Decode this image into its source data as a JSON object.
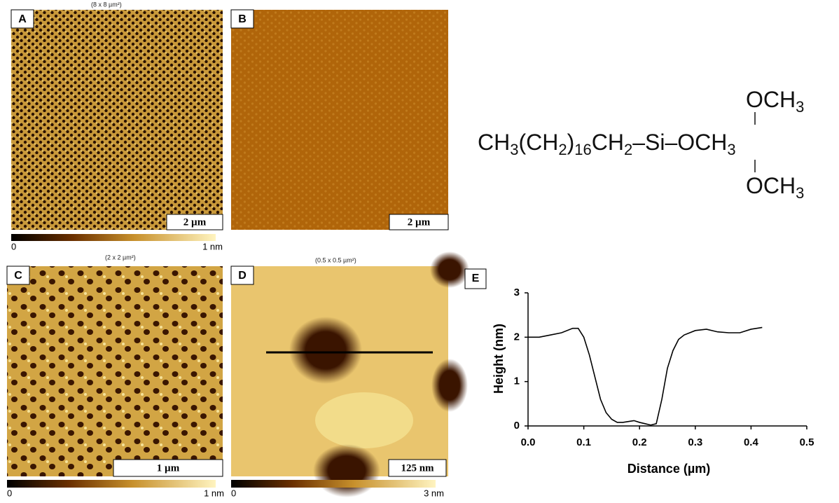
{
  "panels": [
    {
      "label": "A",
      "size": "(8 x 8 µm²)",
      "scale": "2 µm",
      "colorbar": [
        "0",
        "1 nm"
      ]
    },
    {
      "label": "B",
      "scale": "2 µm"
    },
    {
      "label": "C",
      "size": "(2 x 2 µm²)",
      "scale": "1 µm",
      "colorbar": [
        "0",
        "1 nm"
      ]
    },
    {
      "label": "D",
      "size": "(0.5 x 0.5 µm²)",
      "scale": "125 nm",
      "colorbar": [
        "0",
        "3 nm"
      ]
    }
  ],
  "formula": {
    "top": [
      "OCH",
      "3"
    ],
    "main": [
      "CH",
      "3",
      "(CH",
      "2",
      ")",
      "16",
      "CH",
      "2",
      "–Si–OCH",
      "3"
    ],
    "bottom": [
      "OCH",
      "3"
    ]
  },
  "chart_data": {
    "type": "line",
    "label": "E",
    "x_label": "Distance (µm)",
    "y_label": "Height (nm)",
    "x": [
      0,
      0.02,
      0.04,
      0.06,
      0.08,
      0.09,
      0.1,
      0.11,
      0.12,
      0.13,
      0.14,
      0.15,
      0.16,
      0.17,
      0.18,
      0.19,
      0.2,
      0.21,
      0.22,
      0.23,
      0.24,
      0.25,
      0.26,
      0.27,
      0.28,
      0.29,
      0.3,
      0.32,
      0.34,
      0.36,
      0.38,
      0.4,
      0.42
    ],
    "values": [
      2.0,
      2.0,
      2.05,
      2.1,
      2.2,
      2.2,
      2.0,
      1.6,
      1.1,
      0.6,
      0.3,
      0.15,
      0.08,
      0.08,
      0.1,
      0.12,
      0.08,
      0.05,
      0.02,
      0.05,
      0.6,
      1.3,
      1.7,
      1.95,
      2.05,
      2.1,
      2.15,
      2.18,
      2.12,
      2.1,
      2.1,
      2.18,
      2.22
    ],
    "color": "#000000",
    "xlim": [
      0,
      0.5
    ],
    "xticks": [
      {
        "value": 0,
        "label": "0.0"
      },
      0.1,
      0.2,
      0.3,
      0.4,
      0.5
    ],
    "ylim": [
      0,
      3
    ],
    "yticks": [
      0,
      1,
      2,
      3
    ]
  }
}
